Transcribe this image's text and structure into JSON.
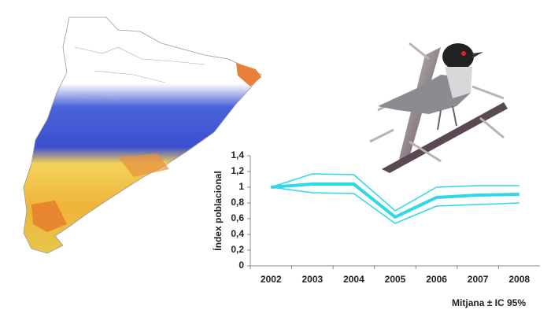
{
  "chart_data": {
    "type": "line",
    "y_label": "Índex poblacional",
    "note": "Mitjana ± IC 95%",
    "categories": [
      "2002",
      "2003",
      "2004",
      "2005",
      "2006",
      "2007",
      "2008"
    ],
    "series": [
      {
        "name": "Mitjana",
        "color": "#2fd8e6",
        "values": [
          1.0,
          1.04,
          1.04,
          0.62,
          0.87,
          0.9,
          0.91
        ]
      },
      {
        "name": "IC 95% superior",
        "color": "#2fd8e6",
        "values": [
          1.0,
          1.17,
          1.16,
          0.7,
          1.0,
          1.02,
          1.02
        ]
      },
      {
        "name": "IC 95% inferior",
        "color": "#2fd8e6",
        "values": [
          1.0,
          0.93,
          0.92,
          0.54,
          0.76,
          0.78,
          0.8
        ]
      }
    ],
    "ylim": [
      0,
      1.4
    ],
    "yticks": [
      0,
      {
        "value": 0.2,
        "label": "0,2"
      },
      {
        "value": 0.4,
        "label": "0,4"
      },
      {
        "value": 0.6,
        "label": "0,6"
      },
      {
        "value": 0.8,
        "label": "0,8"
      },
      1,
      {
        "value": 1.2,
        "label": "1,2"
      },
      {
        "value": 1.4,
        "label": "1,4"
      }
    ],
    "grid": false
  }
}
